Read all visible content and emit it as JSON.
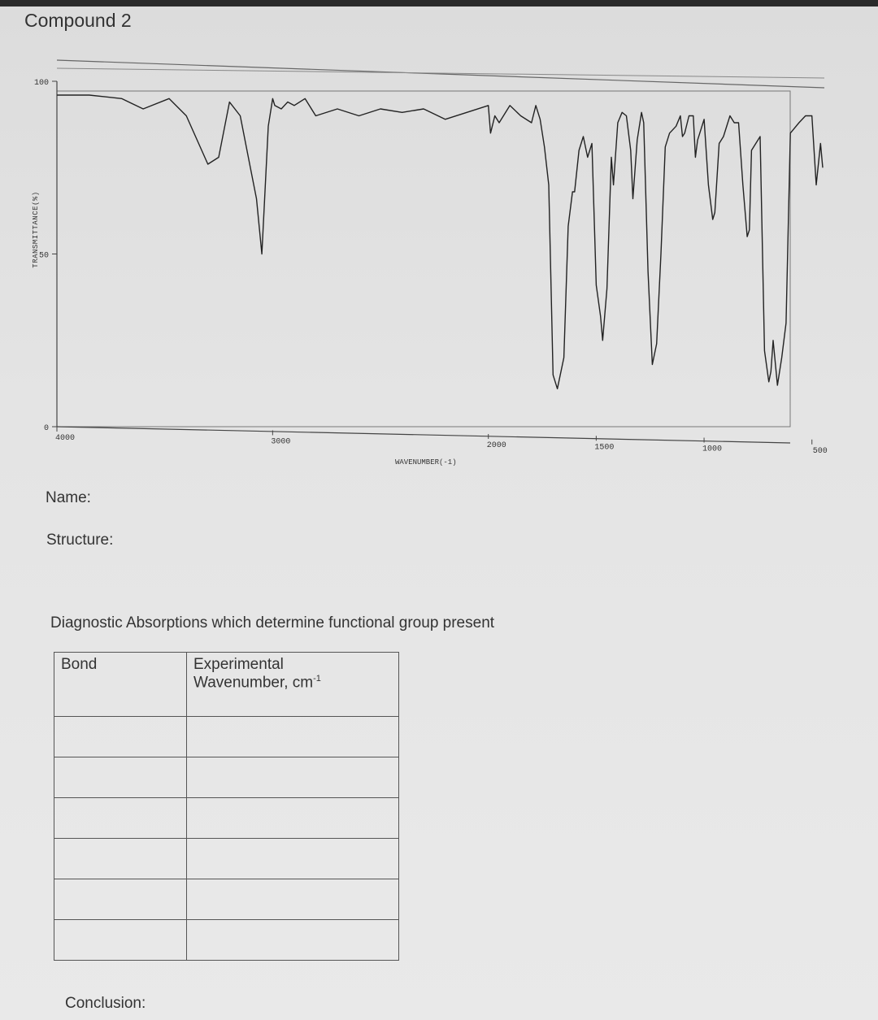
{
  "page": {
    "title": "Compound 2",
    "name_label": "Name:",
    "structure_label": "Structure:",
    "diagnostic_heading": "Diagnostic Absorptions which determine functional group present",
    "conclusion_label": "Conclusion:"
  },
  "table": {
    "headers": {
      "bond": "Bond",
      "experimental_line1": "Experimental",
      "experimental_line2": "Wavenumber, cm",
      "experimental_sup": "-1"
    },
    "rows": [
      [
        "",
        ""
      ],
      [
        "",
        ""
      ],
      [
        "",
        ""
      ],
      [
        "",
        ""
      ],
      [
        "",
        ""
      ],
      [
        "",
        ""
      ]
    ]
  },
  "chart_data": {
    "type": "line",
    "title": "",
    "xlabel": "WAVENUMBER(-1)",
    "ylabel": "TRANSMITTANCE(%)",
    "x_ticks": [
      {
        "value": 4000,
        "label": "4000"
      },
      {
        "value": 3000,
        "label": "3000"
      },
      {
        "value": 2000,
        "label": "2000"
      },
      {
        "value": 1500,
        "label": "1500"
      },
      {
        "value": 1000,
        "label": "1000"
      },
      {
        "value": 500,
        "label": "500"
      }
    ],
    "y_ticks": [
      {
        "value": 0,
        "label": "0"
      },
      {
        "value": 50,
        "label": "50"
      },
      {
        "value": 100,
        "label": "100"
      }
    ],
    "xlim": [
      4000,
      450
    ],
    "ylim": [
      0,
      100
    ],
    "grid": false,
    "series": [
      {
        "x": [
          4000,
          3850,
          3700,
          3600,
          3480,
          3400,
          3300,
          3250,
          3200,
          3150,
          3100,
          3075,
          3050,
          3020,
          3000,
          2990,
          2960,
          2930,
          2900,
          2850,
          2800,
          2700,
          2600,
          2500,
          2400,
          2300,
          2200,
          2100,
          2000,
          1990,
          1970,
          1950,
          1900,
          1850,
          1800,
          1780,
          1760,
          1740,
          1720,
          1700,
          1680,
          1650,
          1630,
          1610,
          1600,
          1580,
          1560,
          1540,
          1520,
          1500,
          1480,
          1470,
          1450,
          1430,
          1420,
          1400,
          1380,
          1360,
          1340,
          1330,
          1310,
          1290,
          1280,
          1260,
          1240,
          1220,
          1200,
          1180,
          1160,
          1130,
          1110,
          1100,
          1090,
          1070,
          1050,
          1040,
          1030,
          1000,
          980,
          960,
          950,
          930,
          910,
          880,
          860,
          840,
          820,
          800,
          790,
          780,
          760,
          740,
          720,
          700,
          690,
          680,
          660,
          640,
          620,
          600,
          560,
          530,
          500,
          480,
          460,
          450
        ],
        "y": [
          96,
          96,
          95,
          92,
          95,
          90,
          76,
          78,
          94,
          90,
          74,
          66,
          50,
          87,
          95,
          93,
          92,
          94,
          93,
          95,
          90,
          92,
          90,
          92,
          91,
          92,
          89,
          91,
          93,
          85,
          90,
          88,
          93,
          90,
          88,
          93,
          89,
          81,
          70,
          15,
          11,
          20,
          58,
          68,
          68,
          80,
          84,
          78,
          82,
          41,
          32,
          25,
          40,
          78,
          70,
          88,
          91,
          90,
          80,
          66,
          83,
          91,
          88,
          45,
          18,
          24,
          50,
          81,
          85,
          87,
          90,
          84,
          85,
          90,
          90,
          78,
          83,
          89,
          70,
          60,
          62,
          82,
          84,
          90,
          88,
          88,
          70,
          55,
          57,
          80,
          82,
          84,
          22,
          13,
          16,
          25,
          12,
          20,
          30,
          85,
          88,
          90,
          90,
          70,
          82,
          75
        ]
      }
    ]
  }
}
